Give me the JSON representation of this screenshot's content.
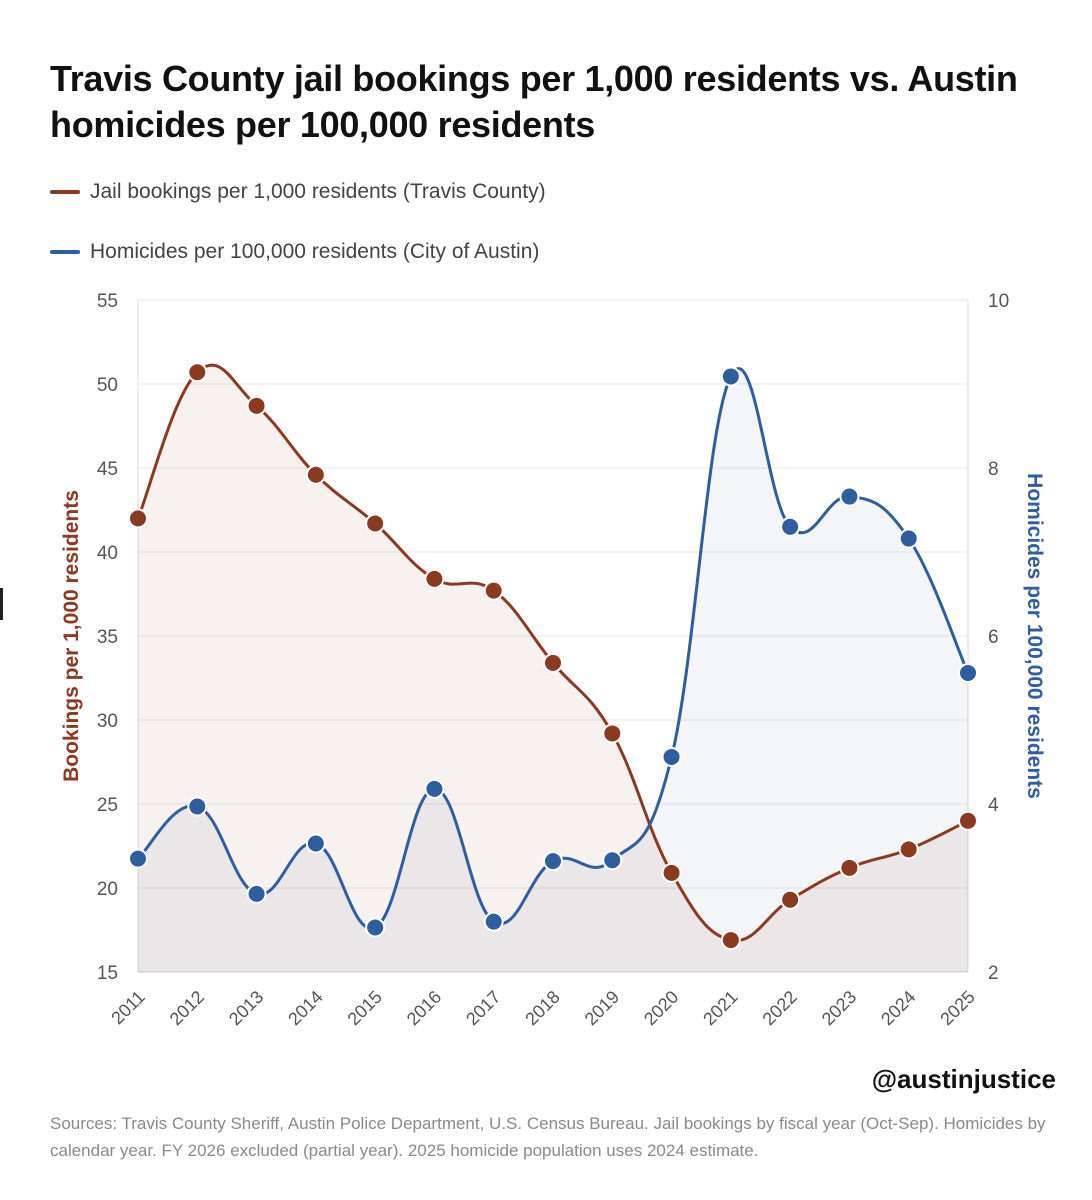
{
  "colors": {
    "bookings": "#8b3a22",
    "homicides": "#2f5d9e",
    "grid": "#e8e8e8",
    "axis_text": "#555555"
  },
  "watermark": "@austinjustice",
  "sources": "Sources: Travis County Sheriff, Austin Police Department, U.S. Census Bureau. Jail bookings by fiscal year (Oct-Sep). Homicides by calendar year. FY 2026 excluded (partial year). 2025 homicide population uses 2024 estimate.",
  "chart_data": {
    "type": "line",
    "title": "Travis County jail bookings per 1,000 residents vs. Austin homicides per 100,000 residents",
    "x": [
      "2011",
      "2012",
      "2013",
      "2014",
      "2015",
      "2016",
      "2017",
      "2018",
      "2019",
      "2020",
      "2021",
      "2022",
      "2023",
      "2024",
      "2025"
    ],
    "y_left": {
      "label": "Bookings per 1,000 residents",
      "ylim": [
        15,
        55
      ],
      "ticks": [
        "15",
        "20",
        "25",
        "30",
        "35",
        "40",
        "45",
        "50",
        "55"
      ]
    },
    "y_right": {
      "label": "Homicides per 100,000 residents",
      "ylim": [
        2,
        10
      ],
      "ticks": [
        "2",
        "4",
        "6",
        "8",
        "10"
      ]
    },
    "series": [
      {
        "name": "Jail bookings per 1,000 residents (Travis County)",
        "axis": "left",
        "values": [
          42.0,
          50.7,
          48.7,
          44.6,
          41.7,
          38.4,
          37.7,
          33.4,
          29.2,
          20.9,
          16.9,
          19.3,
          21.2,
          22.3,
          24.0
        ]
      },
      {
        "name": "Homicides per 100,000 residents (City of Austin)",
        "axis": "right",
        "values": [
          3.35,
          3.97,
          2.93,
          3.53,
          2.53,
          4.18,
          2.6,
          3.32,
          3.33,
          4.56,
          9.09,
          7.3,
          7.66,
          7.16,
          5.56
        ]
      }
    ],
    "grid": true,
    "legend_position": "top-left"
  }
}
